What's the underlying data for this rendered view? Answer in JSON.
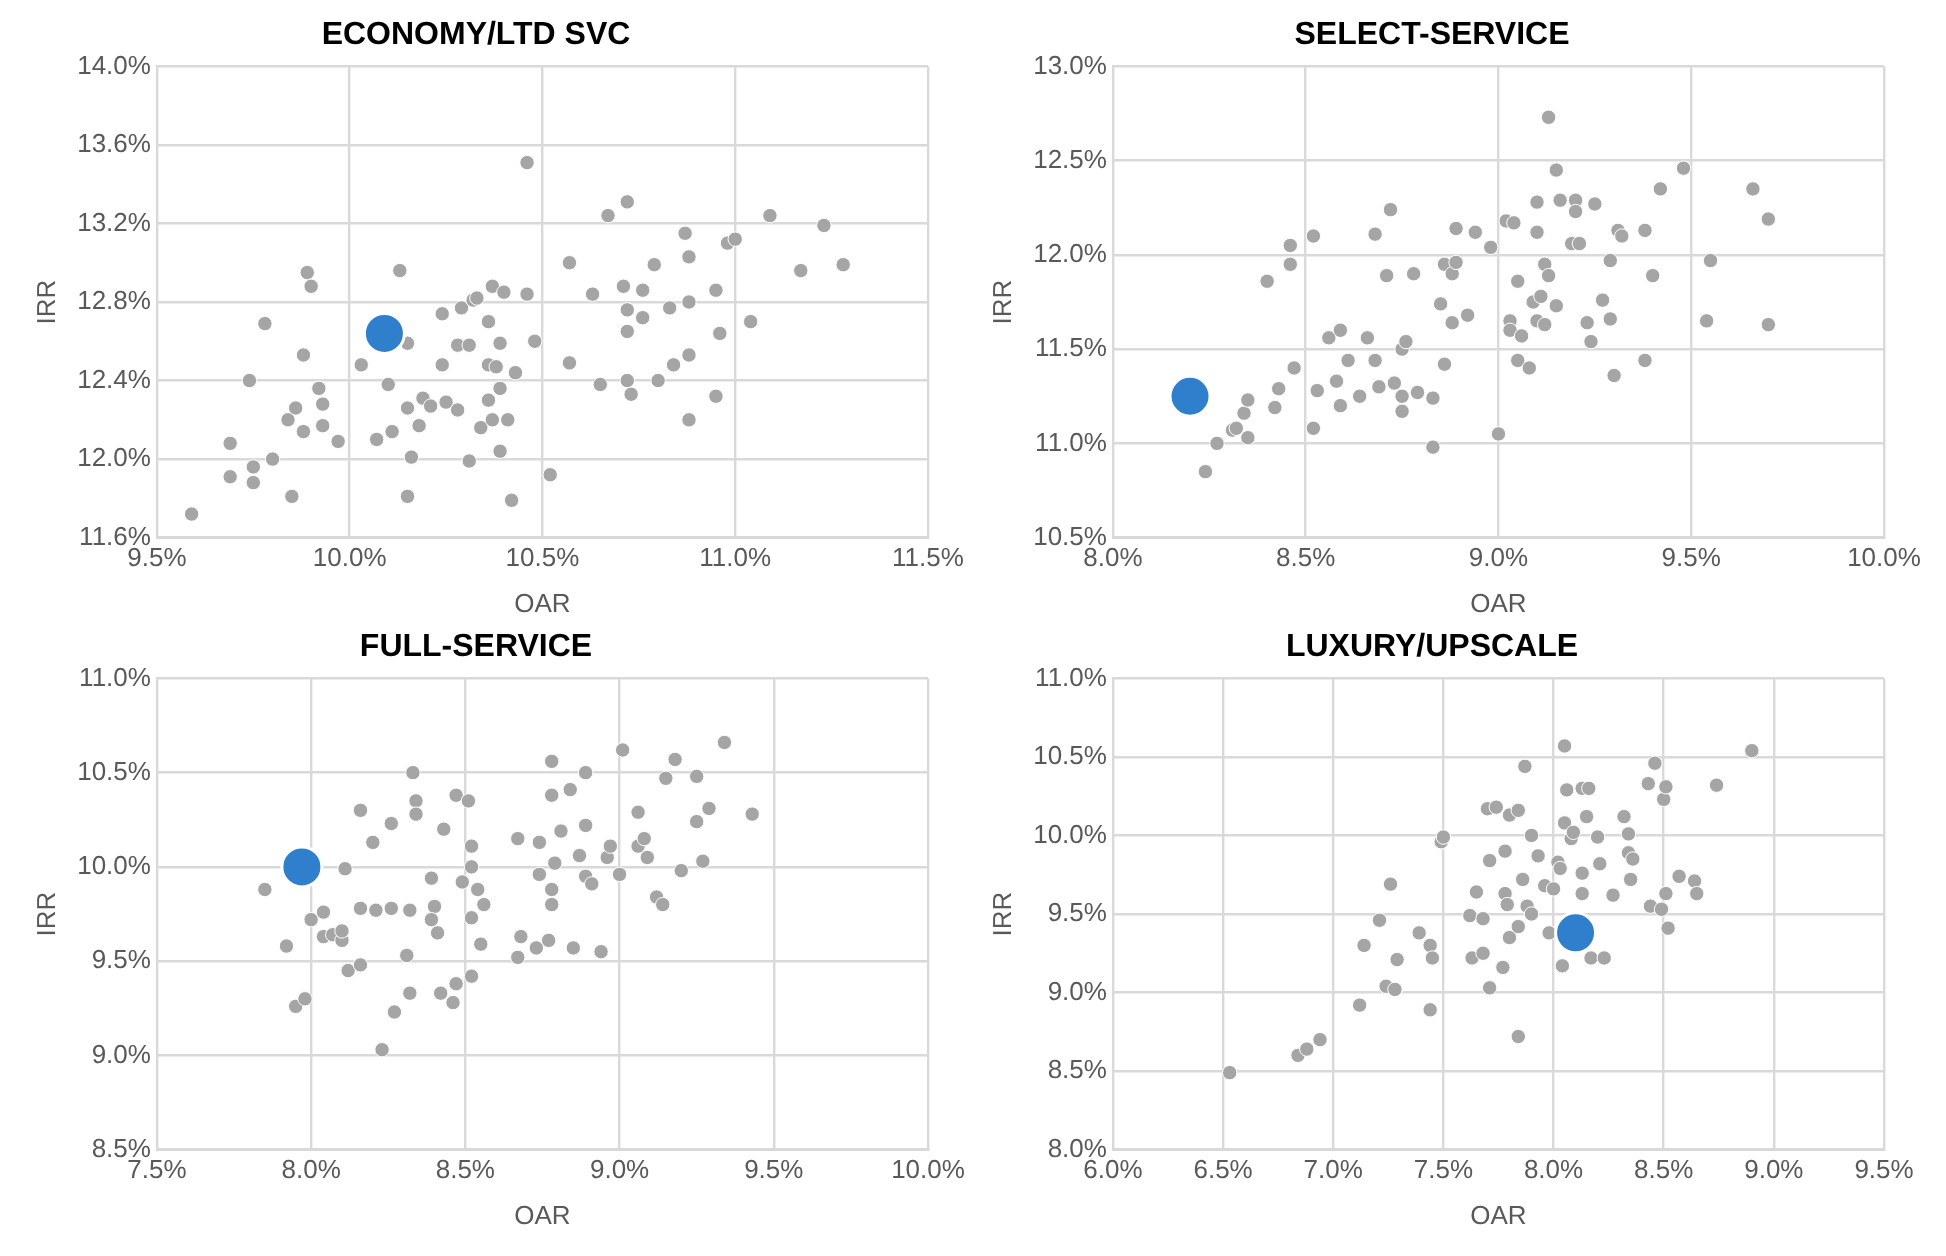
{
  "chart_data": [
    {
      "type": "scatter",
      "title": "ECONOMY/LTD SVC",
      "xlabel": "OAR",
      "ylabel": "IRR",
      "marker": "circle",
      "grid": true,
      "xlim": [
        9.5,
        11.5
      ],
      "xticks": [
        {
          "value": 9.5,
          "label": "9.5%"
        },
        {
          "value": 10,
          "label": "10.0%"
        },
        {
          "value": 10.5,
          "label": "10.5%"
        },
        {
          "value": 11,
          "label": "11.0%"
        },
        {
          "value": 11.5,
          "label": "11.5%"
        }
      ],
      "ylim": [
        11.6,
        14
      ],
      "yticks": [
        {
          "value": 11.6,
          "label": "11.6%"
        },
        {
          "value": 12,
          "label": "12.0%"
        },
        {
          "value": 12.4,
          "label": "12.4%"
        },
        {
          "value": 12.8,
          "label": "12.8%"
        },
        {
          "value": 13.2,
          "label": "13.2%"
        },
        {
          "value": 13.6,
          "label": "13.6%"
        },
        {
          "value": 14,
          "label": "14.0%"
        }
      ],
      "series": [
        {
          "color": "#a5a5a5",
          "x": [
            9.59,
            9.69,
            9.69,
            9.74,
            9.75,
            9.75,
            9.78,
            9.8,
            9.85,
            9.84,
            9.86,
            9.88,
            9.88,
            9.89,
            9.9,
            9.92,
            9.93,
            9.93,
            9.97,
            10.03,
            10.07,
            10.1,
            10.11,
            10.13,
            10.15,
            10.15,
            10.15,
            10.16,
            10.18,
            10.19,
            10.21,
            10.24,
            10.24,
            10.25,
            10.28,
            10.28,
            10.29,
            10.31,
            10.31,
            10.32,
            10.33,
            10.34,
            10.36,
            10.36,
            10.36,
            10.37,
            10.37,
            10.38,
            10.39,
            10.39,
            10.39,
            10.4,
            10.41,
            10.42,
            10.43,
            10.46,
            10.46,
            10.48,
            10.52,
            10.57,
            10.57,
            10.63,
            10.65,
            10.67,
            10.72,
            10.71,
            10.72,
            10.72,
            10.72,
            10.73,
            10.76,
            10.76,
            10.79,
            10.8,
            10.83,
            10.84,
            10.87,
            10.88,
            10.88,
            10.88,
            10.88,
            10.95,
            10.95,
            10.96,
            10.98,
            11,
            11.04,
            11.09,
            11.17,
            11.23,
            11.28
          ],
          "values": [
            11.72,
            12.08,
            11.91,
            12.4,
            11.96,
            11.88,
            12.69,
            12,
            11.81,
            12.2,
            12.26,
            12.14,
            12.53,
            12.95,
            12.88,
            12.36,
            12.28,
            12.17,
            12.09,
            12.48,
            12.1,
            12.38,
            12.14,
            12.96,
            12.59,
            12.26,
            11.81,
            12.01,
            12.17,
            12.31,
            12.27,
            12.74,
            12.48,
            12.29,
            12.25,
            12.58,
            12.77,
            12.58,
            11.99,
            12.81,
            12.82,
            12.16,
            12.7,
            12.48,
            12.3,
            12.2,
            12.88,
            12.47,
            12.59,
            12.36,
            12.04,
            12.85,
            12.2,
            11.79,
            12.44,
            13.51,
            12.84,
            12.6,
            11.92,
            13,
            12.49,
            12.84,
            12.38,
            13.24,
            13.31,
            12.88,
            12.76,
            12.65,
            12.4,
            12.33,
            12.86,
            12.72,
            12.99,
            12.4,
            12.77,
            12.48,
            13.15,
            12.8,
            13.03,
            12.53,
            12.2,
            12.32,
            12.86,
            12.64,
            13.1,
            13.12,
            12.7,
            13.24,
            12.96,
            13.19,
            12.99
          ]
        },
        {
          "color": "#2f7fcc",
          "x": [
            10.09
          ],
          "values": [
            12.64
          ]
        }
      ]
    },
    {
      "type": "scatter",
      "title": "SELECT-SERVICE",
      "xlabel": "OAR",
      "ylabel": "IRR",
      "marker": "circle",
      "grid": true,
      "xlim": [
        8,
        10
      ],
      "xticks": [
        {
          "value": 8,
          "label": "8.0%"
        },
        {
          "value": 8.5,
          "label": "8.5%"
        },
        {
          "value": 9,
          "label": "9.0%"
        },
        {
          "value": 9.5,
          "label": "9.5%"
        },
        {
          "value": 10,
          "label": "10.0%"
        }
      ],
      "ylim": [
        10.5,
        13
      ],
      "yticks": [
        {
          "value": 10.5,
          "label": "10.5%"
        },
        {
          "value": 11,
          "label": "11.0%"
        },
        {
          "value": 11.5,
          "label": "11.5%"
        },
        {
          "value": 12,
          "label": "12.0%"
        },
        {
          "value": 12.5,
          "label": "12.5%"
        },
        {
          "value": 13,
          "label": "13.0%"
        }
      ],
      "series": [
        {
          "color": "#a5a5a5",
          "x": [
            8.24,
            8.27,
            8.31,
            8.32,
            8.34,
            8.35,
            8.35,
            8.4,
            8.42,
            8.43,
            8.46,
            8.46,
            8.47,
            8.52,
            8.52,
            8.53,
            8.56,
            8.58,
            8.59,
            8.59,
            8.61,
            8.64,
            8.66,
            8.68,
            8.68,
            8.69,
            8.71,
            8.72,
            8.73,
            8.75,
            8.76,
            8.75,
            8.75,
            8.78,
            8.79,
            8.83,
            8.83,
            8.85,
            8.86,
            8.86,
            8.88,
            8.88,
            8.89,
            8.89,
            8.92,
            8.94,
            8.98,
            9,
            9.02,
            9.03,
            9.03,
            9.04,
            9.05,
            9.05,
            9.06,
            9.08,
            9.09,
            9.1,
            9.1,
            9.1,
            9.11,
            9.12,
            9.12,
            9.13,
            9.13,
            9.15,
            9.15,
            9.16,
            9.19,
            9.2,
            9.2,
            9.21,
            9.23,
            9.24,
            9.25,
            9.27,
            9.29,
            9.29,
            9.3,
            9.31,
            9.32,
            9.38,
            9.38,
            9.4,
            9.42,
            9.48,
            9.54,
            9.55,
            9.66,
            9.7,
            9.7
          ],
          "values": [
            10.85,
            11,
            11.07,
            11.08,
            11.16,
            11.03,
            11.23,
            11.86,
            11.19,
            11.29,
            11.95,
            12.05,
            11.4,
            11.08,
            12.1,
            11.28,
            11.56,
            11.33,
            11.6,
            11.2,
            11.44,
            11.25,
            11.56,
            12.11,
            11.44,
            11.3,
            11.89,
            12.24,
            11.32,
            11.5,
            11.54,
            11.17,
            11.25,
            11.9,
            11.27,
            11.24,
            10.98,
            11.74,
            11.42,
            11.95,
            11.9,
            11.64,
            12.14,
            11.96,
            11.68,
            12.12,
            12.04,
            11.05,
            12.18,
            11.65,
            11.6,
            12.17,
            11.86,
            11.44,
            11.57,
            11.4,
            11.75,
            11.65,
            12.28,
            12.12,
            11.78,
            11.63,
            11.95,
            11.89,
            12.73,
            11.73,
            12.45,
            12.29,
            12.06,
            12.29,
            12.23,
            12.06,
            11.64,
            11.54,
            12.27,
            11.76,
            11.97,
            11.66,
            11.36,
            12.13,
            12.1,
            12.13,
            11.44,
            11.89,
            12.35,
            12.46,
            11.65,
            11.97,
            12.35,
            11.63,
            12.19
          ]
        },
        {
          "color": "#2f7fcc",
          "x": [
            8.2
          ],
          "values": [
            11.25
          ]
        }
      ]
    },
    {
      "type": "scatter",
      "title": "FULL-SERVICE",
      "xlabel": "OAR",
      "ylabel": "IRR",
      "marker": "circle",
      "grid": true,
      "xlim": [
        7.5,
        10
      ],
      "xticks": [
        {
          "value": 7.5,
          "label": "7.5%"
        },
        {
          "value": 8,
          "label": "8.0%"
        },
        {
          "value": 8.5,
          "label": "8.5%"
        },
        {
          "value": 9,
          "label": "9.0%"
        },
        {
          "value": 9.5,
          "label": "9.5%"
        },
        {
          "value": 10,
          "label": "10.0%"
        }
      ],
      "ylim": [
        8.5,
        11
      ],
      "yticks": [
        {
          "value": 8.5,
          "label": "8.5%"
        },
        {
          "value": 9,
          "label": "9.0%"
        },
        {
          "value": 9.5,
          "label": "9.5%"
        },
        {
          "value": 10,
          "label": "10.0%"
        },
        {
          "value": 10.5,
          "label": "10.5%"
        },
        {
          "value": 11,
          "label": "11.0%"
        }
      ],
      "series": [
        {
          "color": "#a5a5a5",
          "x": [
            7.85,
            7.92,
            7.95,
            7.98,
            8,
            8.04,
            8.04,
            8.07,
            8.1,
            8.1,
            8.11,
            8.12,
            8.16,
            8.16,
            8.16,
            8.2,
            8.21,
            8.23,
            8.26,
            8.26,
            8.27,
            8.31,
            8.32,
            8.32,
            8.33,
            8.34,
            8.34,
            8.39,
            8.4,
            8.39,
            8.41,
            8.42,
            8.43,
            8.46,
            8.47,
            8.47,
            8.49,
            8.51,
            8.52,
            8.52,
            8.52,
            8.52,
            8.54,
            8.56,
            8.55,
            8.67,
            8.67,
            8.68,
            8.73,
            8.74,
            8.74,
            8.77,
            8.78,
            8.78,
            8.78,
            8.78,
            8.79,
            8.81,
            8.84,
            8.85,
            8.87,
            8.89,
            8.89,
            8.89,
            8.91,
            8.94,
            8.96,
            8.97,
            9,
            9.01,
            9.06,
            9.06,
            9.08,
            9.09,
            9.12,
            9.14,
            9.15,
            9.18,
            9.2,
            9.25,
            9.25,
            9.27,
            9.29,
            9.34,
            9.43
          ],
          "values": [
            9.88,
            9.58,
            9.26,
            9.3,
            9.72,
            9.76,
            9.63,
            9.64,
            9.61,
            9.66,
            9.99,
            9.45,
            10.3,
            9.78,
            9.48,
            10.13,
            9.77,
            9.03,
            9.78,
            10.23,
            9.23,
            9.53,
            9.77,
            9.33,
            10.5,
            10.35,
            10.28,
            9.94,
            9.79,
            9.72,
            9.65,
            9.33,
            10.2,
            9.28,
            9.38,
            10.38,
            9.92,
            10.35,
            10.11,
            10,
            9.42,
            9.73,
            9.88,
            9.8,
            9.59,
            10.15,
            9.52,
            9.63,
            9.57,
            10.13,
            9.96,
            9.61,
            10.38,
            10.56,
            9.8,
            9.88,
            10.02,
            10.19,
            10.41,
            9.57,
            10.06,
            10.22,
            10.5,
            9.95,
            9.91,
            9.55,
            10.05,
            10.11,
            9.96,
            10.62,
            10.29,
            10.11,
            10.15,
            10.05,
            9.84,
            9.8,
            10.47,
            10.57,
            9.98,
            10.24,
            10.48,
            10.03,
            10.31,
            10.66,
            10.28
          ]
        },
        {
          "color": "#2f7fcc",
          "x": [
            7.97
          ],
          "values": [
            10
          ]
        }
      ]
    },
    {
      "type": "scatter",
      "title": "LUXURY/UPSCALE",
      "xlabel": "OAR",
      "ylabel": "IRR",
      "marker": "circle",
      "grid": true,
      "xlim": [
        6,
        9.5
      ],
      "xticks": [
        {
          "value": 6,
          "label": "6.0%"
        },
        {
          "value": 6.5,
          "label": "6.5%"
        },
        {
          "value": 7,
          "label": "7.0%"
        },
        {
          "value": 7.5,
          "label": "7.5%"
        },
        {
          "value": 8,
          "label": "8.0%"
        },
        {
          "value": 8.5,
          "label": "8.5%"
        },
        {
          "value": 9,
          "label": "9.0%"
        },
        {
          "value": 9.5,
          "label": "9.5%"
        }
      ],
      "ylim": [
        8,
        11
      ],
      "yticks": [
        {
          "value": 8,
          "label": "8.0%"
        },
        {
          "value": 8.5,
          "label": "8.5%"
        },
        {
          "value": 9,
          "label": "9.0%"
        },
        {
          "value": 9.5,
          "label": "9.5%"
        },
        {
          "value": 10,
          "label": "10.0%"
        },
        {
          "value": 10.5,
          "label": "10.5%"
        },
        {
          "value": 11,
          "label": "11.0%"
        }
      ],
      "series": [
        {
          "color": "#a5a5a5",
          "x": [
            6.53,
            6.84,
            6.88,
            6.94,
            7.12,
            7.14,
            7.21,
            7.26,
            7.24,
            7.28,
            7.29,
            7.39,
            7.44,
            7.45,
            7.44,
            7.49,
            7.5,
            7.62,
            7.65,
            7.63,
            7.68,
            7.68,
            7.71,
            7.7,
            7.71,
            7.74,
            7.77,
            7.78,
            7.78,
            7.79,
            7.8,
            7.8,
            7.84,
            7.84,
            7.84,
            7.87,
            7.86,
            7.88,
            7.9,
            7.9,
            7.93,
            7.96,
            8,
            7.98,
            8.02,
            8.03,
            8.05,
            8.05,
            8.04,
            8.06,
            8.08,
            8.09,
            8.13,
            8.15,
            8.13,
            8.13,
            8.16,
            8.17,
            8.2,
            8.21,
            8.23,
            8.27,
            8.32,
            8.34,
            8.34,
            8.35,
            8.36,
            8.43,
            8.44,
            8.46,
            8.49,
            8.5,
            8.51,
            8.51,
            8.52,
            8.57,
            8.64,
            8.65,
            8.74,
            8.9
          ],
          "values": [
            8.49,
            8.6,
            8.64,
            8.7,
            8.92,
            9.3,
            9.46,
            9.69,
            9.04,
            9.02,
            9.21,
            9.38,
            9.3,
            9.22,
            8.89,
            9.96,
            9.99,
            9.49,
            9.64,
            9.22,
            9.47,
            9.25,
            9.84,
            10.17,
            9.03,
            10.18,
            9.16,
            9.9,
            9.63,
            9.56,
            9.35,
            10.13,
            10.16,
            9.42,
            8.72,
            10.44,
            9.72,
            9.55,
            10,
            9.5,
            9.87,
            9.68,
            9.66,
            9.38,
            9.83,
            9.79,
            10.57,
            10.08,
            9.17,
            10.29,
            9.98,
            10.02,
            10.3,
            10.12,
            9.76,
            9.63,
            10.3,
            9.22,
            9.99,
            9.82,
            9.22,
            9.62,
            10.12,
            10.01,
            9.89,
            9.72,
            9.85,
            10.33,
            9.55,
            10.46,
            9.53,
            10.23,
            10.31,
            9.63,
            9.41,
            9.74,
            9.71,
            9.63,
            10.32,
            10.54
          ]
        },
        {
          "color": "#2f7fcc",
          "x": [
            8.1
          ],
          "values": [
            9.38
          ]
        }
      ]
    }
  ]
}
